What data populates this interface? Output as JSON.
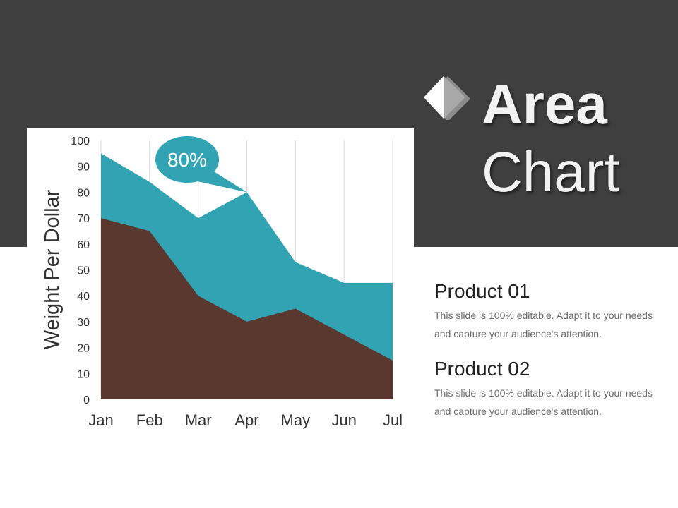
{
  "slide": {
    "title_line1": "Area",
    "title_line2": "Chart"
  },
  "colors": {
    "header_bg": "#3f3f3f",
    "series1": "#5a372f",
    "series2": "#31a3b3",
    "callout": "#31a3b3"
  },
  "icons": {
    "title_icon": "diamond-icon"
  },
  "chart_data": {
    "type": "area",
    "categories": [
      "Jan",
      "Feb",
      "Mar",
      "Apr",
      "May",
      "Jun",
      "Jul"
    ],
    "series": [
      {
        "values": [
          70,
          65,
          40,
          30,
          35,
          25,
          15
        ],
        "color": "#5a372f"
      },
      {
        "values": [
          95,
          84,
          70,
          80,
          53,
          45,
          45
        ],
        "color": "#31a3b3"
      }
    ],
    "ylabel": "Weight Per Dollar",
    "ylim": [
      0,
      100
    ],
    "yticks": [
      0,
      10,
      20,
      30,
      40,
      50,
      60,
      70,
      80,
      90,
      100
    ],
    "grid": "vertical",
    "annotation": {
      "text": "80%",
      "category": "Apr",
      "value": 80
    }
  },
  "legend": [
    {
      "title": "Product 01",
      "description": "This slide is 100% editable. Adapt it to your needs and capture your audience's attention."
    },
    {
      "title": "Product 02",
      "description": "This slide is 100% editable. Adapt it to your needs and capture your audience's attention."
    }
  ]
}
